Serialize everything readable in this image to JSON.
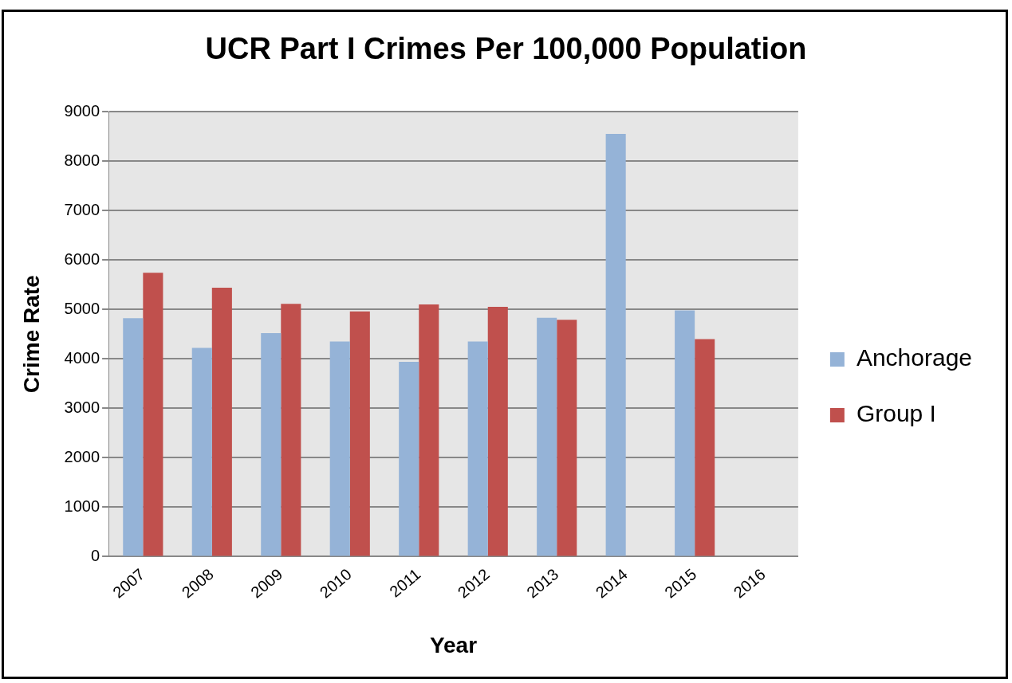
{
  "chart_data": {
    "type": "bar",
    "title": "UCR Part I Crimes Per 100,000 Population",
    "xlabel": "Year",
    "ylabel": "Crime Rate",
    "categories": [
      "2007",
      "2008",
      "2009",
      "2010",
      "2011",
      "2012",
      "2013",
      "2014",
      "2015",
      "2016"
    ],
    "series": [
      {
        "name": "Anchorage",
        "color": "#95b3d7",
        "values": [
          4820,
          4220,
          4520,
          4350,
          3940,
          4350,
          4830,
          8550,
          4980,
          null
        ]
      },
      {
        "name": "Group I",
        "color": "#c0504d",
        "values": [
          5740,
          5440,
          5110,
          4960,
          5100,
          5050,
          4790,
          null,
          4400,
          null
        ]
      }
    ],
    "ylim": [
      0,
      9000
    ],
    "yticks": [
      0,
      1000,
      2000,
      3000,
      4000,
      5000,
      6000,
      7000,
      8000,
      9000
    ],
    "grid": "y",
    "legend": "right"
  }
}
